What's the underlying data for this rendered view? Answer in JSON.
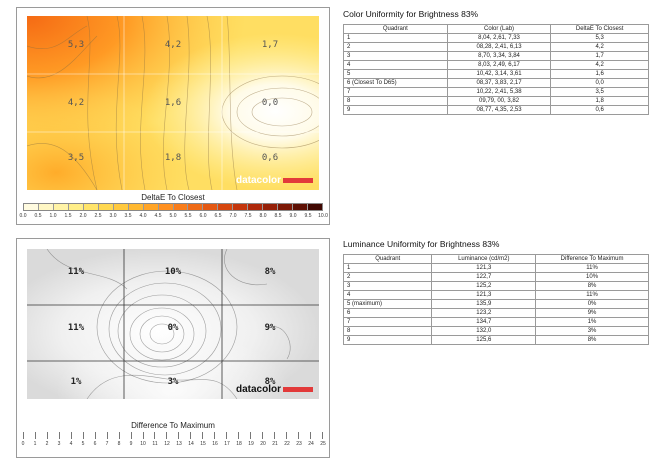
{
  "color_uniformity": {
    "title": "Color Uniformity for Brightness 83%",
    "columns": [
      "Quadrant",
      "Color (Lab)",
      "DeltaE To Closest"
    ],
    "rows": [
      [
        "1",
        "8,04,  2,61,  7,33",
        "5,3"
      ],
      [
        "2",
        "08,28,  2,41,  6,13",
        "4,2"
      ],
      [
        "3",
        "8,70,  3,34,  3,84",
        "1,7"
      ],
      [
        "4",
        "8,03,  2,49,  6,17",
        "4,2"
      ],
      [
        "5",
        "10,42,  3,14,  3,61",
        "1,6"
      ],
      [
        "6 (Closest To D65)",
        "08,37,  3,83,  2,17",
        "0,0"
      ],
      [
        "7",
        "10,22,  2,41,  5,38",
        "3,5"
      ],
      [
        "8",
        "09,79,   00,  3,82",
        "1,8"
      ],
      [
        "9",
        "08,77,  4,35,  2,53",
        "0,6"
      ]
    ],
    "plot_labels": [
      "5,3",
      "4,2",
      "1,7",
      "4,2",
      "1,6",
      "0,0",
      "3,5",
      "1,8",
      "0,6"
    ],
    "scale_title": "DeltaE To Closest",
    "scale_ticks": [
      "0.0",
      "0.5",
      "1.0",
      "1.5",
      "2.0",
      "2.5",
      "3.0",
      "3.5",
      "4.0",
      "4.5",
      "5.0",
      "5.5",
      "6.0",
      "6.5",
      "7.0",
      "7.5",
      "8.0",
      "8.5",
      "9.0",
      "9.5",
      "10.0"
    ],
    "scale_colors": [
      "#fffbe0",
      "#fff7c4",
      "#fff3a6",
      "#ffee88",
      "#ffe46a",
      "#ffd850",
      "#ffc93e",
      "#ffb830",
      "#ffa426",
      "#ff9020",
      "#f87c1a",
      "#ef6a16",
      "#e45812",
      "#d6460e",
      "#c4360c",
      "#ae280a",
      "#962008",
      "#7c1806",
      "#5e1004",
      "#400802"
    ],
    "logo": "datacolor",
    "colors": {
      "red": "#e23a3a"
    }
  },
  "luminance_uniformity": {
    "title": "Luminance Uniformity for Brightness 83%",
    "columns": [
      "Quadrant",
      "Luminance (cd/m2)",
      "Difference To Maximum"
    ],
    "rows": [
      [
        "1",
        "121,3",
        "11%"
      ],
      [
        "2",
        "122,7",
        "10%"
      ],
      [
        "3",
        "125,2",
        "8%"
      ],
      [
        "4",
        "121,3",
        "11%"
      ],
      [
        "5 (maximum)",
        "135,9",
        "0%"
      ],
      [
        "6",
        "123,2",
        "9%"
      ],
      [
        "7",
        "134,7",
        "1%"
      ],
      [
        "8",
        "132,0",
        "3%"
      ],
      [
        "9",
        "125,6",
        "8%"
      ]
    ],
    "plot_labels": [
      "11%",
      "10%",
      "8%",
      "11%",
      "0%",
      "9%",
      "1%",
      "3%",
      "8%"
    ],
    "scale_title": "Difference To Maximum",
    "scale_ticks": [
      "0",
      "1",
      "2",
      "3",
      "4",
      "5",
      "6",
      "7",
      "8",
      "9",
      "10",
      "11",
      "12",
      "13",
      "14",
      "15",
      "16",
      "17",
      "18",
      "19",
      "20",
      "21",
      "22",
      "23",
      "24",
      "25"
    ],
    "logo": "datacolor"
  }
}
